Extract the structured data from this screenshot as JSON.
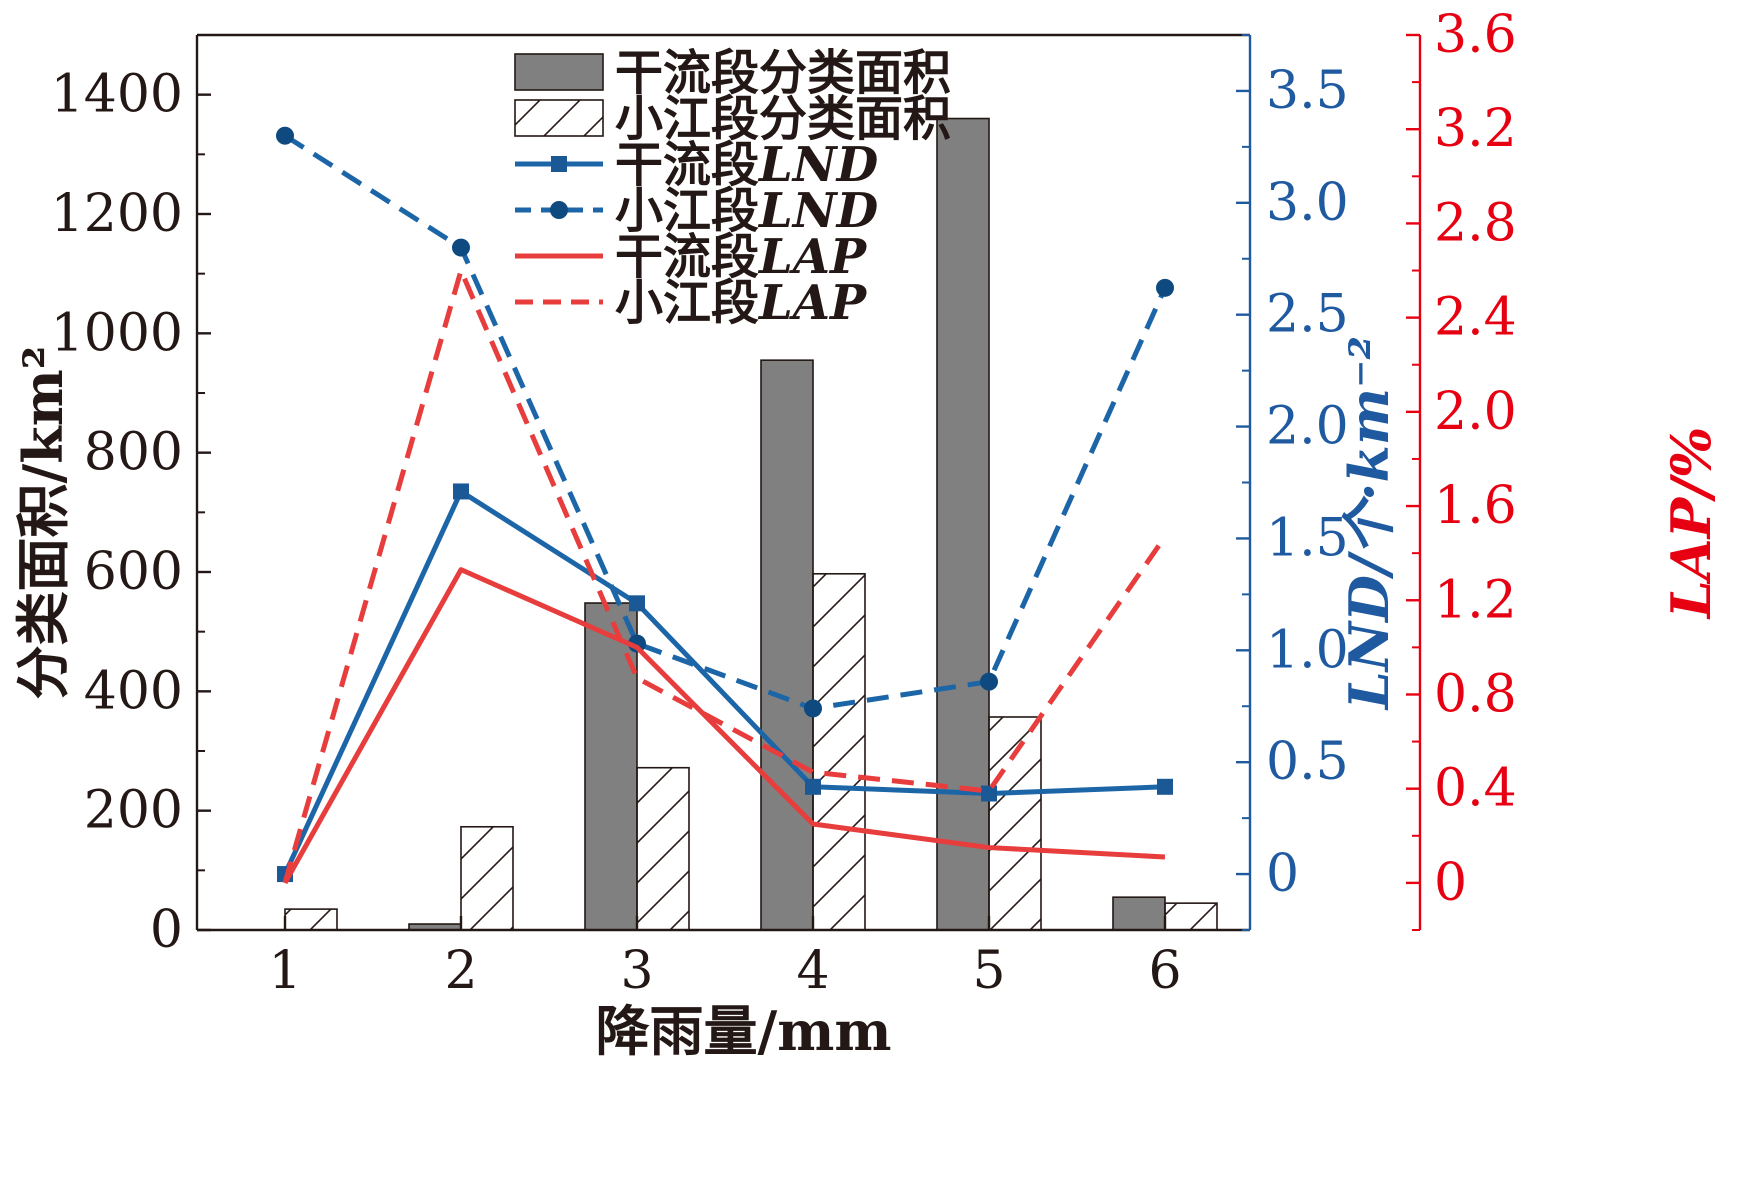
{
  "chart_data": {
    "type": "bar",
    "categories": [
      "1",
      "2",
      "3",
      "4",
      "5",
      "6"
    ],
    "xlabel": "降雨量/mm",
    "ylabel_left": "分类面积/km²",
    "ylabel_right1": "LND/个·km⁻²",
    "ylabel_right2": "LAP/%",
    "ylim_left": [
      0,
      1500
    ],
    "ylim_right1": [
      -0.25,
      3.75
    ],
    "ylim_right2": [
      -0.2,
      3.6
    ],
    "yticks_left": [
      0,
      200,
      400,
      600,
      800,
      1000,
      1200,
      1400
    ],
    "yticks_right1": [
      0,
      0.5,
      1.0,
      1.5,
      2.0,
      2.5,
      3.0,
      3.5
    ],
    "yticks_right2": [
      0,
      0.4,
      0.8,
      1.2,
      1.6,
      2.0,
      2.4,
      2.8,
      3.2,
      3.6
    ],
    "yticklabels_left": [
      "0",
      "200",
      "400",
      "600",
      "800",
      "1000",
      "1200",
      "1400"
    ],
    "yticklabels_right1": [
      "0",
      "0.5",
      "1.0",
      "1.5",
      "2.0",
      "2.5",
      "3.0",
      "3.5"
    ],
    "yticklabels_right2": [
      "0",
      "0.4",
      "0.8",
      "1.2",
      "1.6",
      "2.0",
      "2.4",
      "2.8",
      "3.2",
      "3.6"
    ],
    "colors": {
      "axis_left": "#231815",
      "axis_right1": "#1f5aa0",
      "axis_right2": "#e60012",
      "bar_main": "#808080",
      "lnd": "#1c66a8",
      "lap": "#e83d3d"
    },
    "series": [
      {
        "name": "干流段分类面积",
        "kind": "bar",
        "axis": "left",
        "fill": "solid",
        "values": [
          0,
          10,
          548,
          955,
          1360,
          55
        ]
      },
      {
        "name": "小江段分类面积",
        "kind": "bar",
        "axis": "left",
        "fill": "hatch",
        "values": [
          35,
          173,
          272,
          597,
          357,
          45
        ]
      },
      {
        "name": "干流段LND",
        "kind": "line",
        "axis": "right1",
        "dash": false,
        "marker": "square",
        "values": [
          0.0,
          1.71,
          1.21,
          0.39,
          0.36,
          0.39
        ]
      },
      {
        "name": "小江段LND",
        "kind": "line",
        "axis": "right1",
        "dash": true,
        "marker": "circle",
        "values": [
          3.3,
          2.8,
          1.03,
          0.74,
          0.86,
          2.62
        ]
      },
      {
        "name": "干流段LAP",
        "kind": "line",
        "axis": "right2",
        "dash": false,
        "marker": "none",
        "values": [
          0.0,
          1.33,
          1.0,
          0.25,
          0.15,
          0.11
        ]
      },
      {
        "name": "小江段LAP",
        "kind": "line",
        "axis": "right2",
        "dash": true,
        "marker": "none",
        "values": [
          0.0,
          2.6,
          0.87,
          0.47,
          0.39,
          1.47
        ]
      }
    ],
    "legend": {
      "placement": "top-center",
      "entries": [
        {
          "kind": "bar-solid",
          "prefix": "干流段分类面积",
          "suffix": ""
        },
        {
          "kind": "bar-hatch",
          "prefix": "小江段分类面积",
          "suffix": ""
        },
        {
          "kind": "line-square",
          "prefix": "干流段",
          "suffix": "LND"
        },
        {
          "kind": "line-circle",
          "prefix": "小江段",
          "suffix": "LND"
        },
        {
          "kind": "line-solid-red",
          "prefix": "干流段",
          "suffix": "LAP"
        },
        {
          "kind": "line-dash-red",
          "prefix": "小江段",
          "suffix": "LAP"
        }
      ]
    }
  }
}
